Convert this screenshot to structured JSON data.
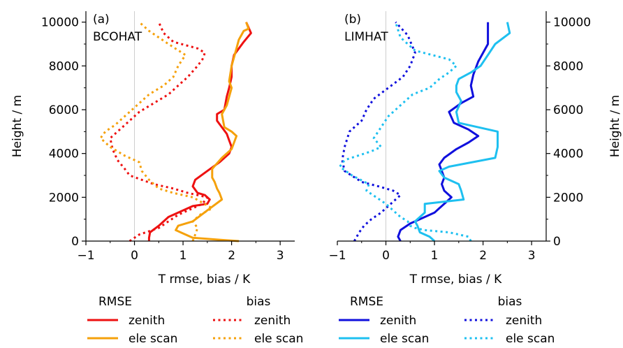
{
  "chart_data": [
    {
      "type": "line",
      "panel_label": "(a)",
      "panel_title": "BCOHAT",
      "xlabel": "T rmse, bias / K",
      "ylabel": "Height / m",
      "xlim": [
        -1,
        3.3
      ],
      "ylim": [
        0,
        10500
      ],
      "xticks": [
        -1,
        0,
        1,
        2,
        3
      ],
      "yticks": [
        0,
        2000,
        4000,
        6000,
        8000,
        10000
      ],
      "y_axis_side": "left",
      "zero_line": true,
      "series": [
        {
          "name": "RMSE zenith",
          "color": "#ee1111",
          "style": "solid",
          "x": [
            0.3,
            0.3,
            0.32,
            0.5,
            0.7,
            0.9,
            1.1,
            1.2,
            1.5,
            1.55,
            1.45,
            1.3,
            1.2,
            1.25,
            1.5,
            1.75,
            1.95,
            2.0,
            1.95,
            1.9,
            1.8,
            1.7,
            1.7,
            1.85,
            1.9,
            1.95,
            2.0,
            2.0,
            2.05,
            2.15,
            2.25,
            2.4,
            2.3
          ],
          "y": [
            0,
            150,
            400,
            700,
            1100,
            1300,
            1500,
            1600,
            1700,
            1900,
            2100,
            2200,
            2500,
            2800,
            3200,
            3600,
            4000,
            4300,
            4600,
            4900,
            5200,
            5500,
            5800,
            6000,
            6600,
            7000,
            7500,
            8000,
            8500,
            8800,
            9100,
            9500,
            10000
          ]
        },
        {
          "name": "RMSE ele scan",
          "color": "#f5a10b",
          "style": "solid",
          "x": [
            2.15,
            1.8,
            1.2,
            0.95,
            0.85,
            0.9,
            1.2,
            1.5,
            1.8,
            1.75,
            1.7,
            1.65,
            1.6,
            1.6,
            1.8,
            2.0,
            2.05,
            2.1,
            2.0,
            1.85,
            1.8,
            1.9,
            2.0,
            1.95,
            2.0,
            2.1,
            2.15,
            2.2,
            2.25,
            2.35,
            2.3
          ],
          "y": [
            0,
            50,
            150,
            400,
            500,
            700,
            900,
            1400,
            1900,
            2200,
            2400,
            2700,
            2900,
            3300,
            3800,
            4200,
            4500,
            4800,
            5000,
            5200,
            5800,
            6200,
            7000,
            7300,
            8000,
            8800,
            9200,
            9400,
            9600,
            9700,
            10000
          ]
        },
        {
          "name": "bias zenith",
          "color": "#ee1111",
          "style": "dotted",
          "x": [
            -0.1,
            0.1,
            0.5,
            0.7,
            0.9,
            1.2,
            1.4,
            1.5,
            1.1,
            0.8,
            0.4,
            0.15,
            -0.1,
            -0.2,
            -0.35,
            -0.45,
            -0.5,
            -0.3,
            -0.1,
            0.1,
            0.4,
            0.7,
            0.9,
            1.1,
            1.3,
            1.4,
            1.45,
            1.3,
            0.8,
            0.6,
            0.5
          ],
          "y": [
            0,
            300,
            600,
            900,
            1200,
            1500,
            1700,
            2000,
            2200,
            2400,
            2600,
            2800,
            3000,
            3300,
            3700,
            4200,
            4700,
            5100,
            5500,
            5900,
            6300,
            6700,
            7100,
            7500,
            8000,
            8300,
            8600,
            8800,
            9100,
            9500,
            10000
          ]
        },
        {
          "name": "bias ele scan",
          "color": "#f5a10b",
          "style": "dotted",
          "x": [
            1.2,
            1.25,
            1.3,
            1.2,
            1.35,
            1.6,
            1.2,
            0.8,
            0.5,
            0.3,
            0.15,
            0.1,
            -0.2,
            -0.5,
            -0.7,
            -0.6,
            -0.4,
            -0.15,
            0.1,
            0.3,
            0.6,
            0.8,
            0.9,
            1.05,
            0.7,
            0.3,
            0.1
          ],
          "y": [
            0,
            300,
            600,
            900,
            1200,
            1500,
            2000,
            2200,
            2400,
            2800,
            3200,
            3600,
            3900,
            4300,
            4700,
            5000,
            5300,
            5800,
            6300,
            6700,
            7100,
            7500,
            8000,
            8500,
            9000,
            9600,
            10000
          ]
        }
      ]
    },
    {
      "type": "line",
      "panel_label": "(b)",
      "panel_title": "LIMHAT",
      "xlabel": "T rmse, bias / K",
      "ylabel": "Height / m",
      "xlim": [
        -1,
        3.3
      ],
      "ylim": [
        0,
        10500
      ],
      "xticks": [
        -1,
        0,
        1,
        2,
        3
      ],
      "yticks": [
        0,
        2000,
        4000,
        6000,
        8000,
        10000
      ],
      "y_axis_side": "right",
      "zero_line": true,
      "series": [
        {
          "name": "RMSE zenith",
          "color": "#1010dd",
          "style": "solid",
          "x": [
            0.3,
            0.25,
            0.3,
            0.5,
            0.8,
            1.0,
            1.1,
            1.2,
            1.35,
            1.2,
            1.15,
            1.2,
            1.15,
            1.1,
            1.2,
            1.45,
            1.7,
            1.9,
            1.7,
            1.4,
            1.3,
            1.55,
            1.8,
            1.75,
            1.8,
            1.9,
            2.1,
            2.1
          ],
          "y": [
            0,
            200,
            500,
            800,
            1100,
            1300,
            1500,
            1700,
            2000,
            2300,
            2600,
            2900,
            3200,
            3500,
            3800,
            4200,
            4500,
            4800,
            5100,
            5400,
            5900,
            6300,
            6600,
            7100,
            7600,
            8200,
            9000,
            10000
          ]
        },
        {
          "name": "RMSE ele scan",
          "color": "#1ec0f0",
          "style": "solid",
          "x": [
            1.0,
            0.9,
            0.7,
            0.65,
            0.6,
            0.8,
            0.8,
            1.6,
            1.55,
            1.5,
            1.2,
            1.1,
            1.3,
            2.25,
            2.3,
            2.3,
            1.5,
            1.45,
            1.55,
            1.45,
            1.45,
            1.5,
            1.75,
            1.95,
            2.1,
            2.25,
            2.55,
            2.5
          ],
          "y": [
            0,
            200,
            400,
            700,
            900,
            1300,
            1700,
            1900,
            2300,
            2600,
            2900,
            3200,
            3400,
            3800,
            4300,
            5000,
            5400,
            5900,
            6400,
            6800,
            7100,
            7400,
            7700,
            8000,
            8500,
            9000,
            9500,
            10000
          ]
        },
        {
          "name": "bias zenith",
          "color": "#1010dd",
          "style": "dotted",
          "x": [
            -0.65,
            -0.55,
            -0.45,
            -0.3,
            -0.1,
            0.0,
            0.1,
            0.2,
            0.3,
            0.15,
            -0.15,
            -0.5,
            -0.85,
            -0.9,
            -0.85,
            -0.75,
            -0.5,
            -0.4,
            -0.25,
            0.05,
            0.35,
            0.5,
            0.6,
            0.45,
            0.2
          ],
          "y": [
            0,
            400,
            700,
            1000,
            1300,
            1500,
            1700,
            1900,
            2100,
            2300,
            2500,
            2700,
            3200,
            3700,
            4300,
            5000,
            5500,
            6000,
            6500,
            7000,
            7500,
            8000,
            8600,
            9400,
            10000
          ]
        },
        {
          "name": "bias ele scan",
          "color": "#1ec0f0",
          "style": "dotted",
          "x": [
            1.75,
            1.7,
            1.3,
            0.8,
            0.6,
            0.5,
            0.45,
            0.3,
            0.2,
            0.0,
            -0.2,
            -0.4,
            -0.35,
            -0.7,
            -0.95,
            -0.85,
            -0.3,
            -0.1,
            -0.25,
            -0.1,
            0.05,
            0.3,
            0.55,
            0.9,
            1.1,
            1.3,
            1.45,
            1.3,
            0.6,
            0.3,
            0.2
          ],
          "y": [
            0,
            200,
            400,
            500,
            600,
            700,
            900,
            1100,
            1300,
            1700,
            2000,
            2300,
            2600,
            3000,
            3400,
            3700,
            4100,
            4300,
            4700,
            5200,
            5700,
            6200,
            6700,
            7000,
            7400,
            7700,
            8000,
            8300,
            8700,
            9300,
            10000
          ]
        }
      ]
    }
  ],
  "legend": {
    "groups": [
      {
        "header": "RMSE",
        "items": [
          {
            "label": "zenith",
            "color": "#ee1111",
            "style": "solid"
          },
          {
            "label": "ele scan",
            "color": "#f5a10b",
            "style": "solid"
          }
        ]
      },
      {
        "header": "bias",
        "items": [
          {
            "label": "zenith",
            "color": "#ee1111",
            "style": "dotted"
          },
          {
            "label": "ele scan",
            "color": "#f5a10b",
            "style": "dotted"
          }
        ]
      },
      {
        "header": "RMSE",
        "items": [
          {
            "label": "zenith",
            "color": "#1010dd",
            "style": "solid"
          },
          {
            "label": "ele scan",
            "color": "#1ec0f0",
            "style": "solid"
          }
        ]
      },
      {
        "header": "bias",
        "items": [
          {
            "label": "zenith",
            "color": "#1010dd",
            "style": "dotted"
          },
          {
            "label": "ele scan",
            "color": "#1ec0f0",
            "style": "dotted"
          }
        ]
      }
    ]
  }
}
